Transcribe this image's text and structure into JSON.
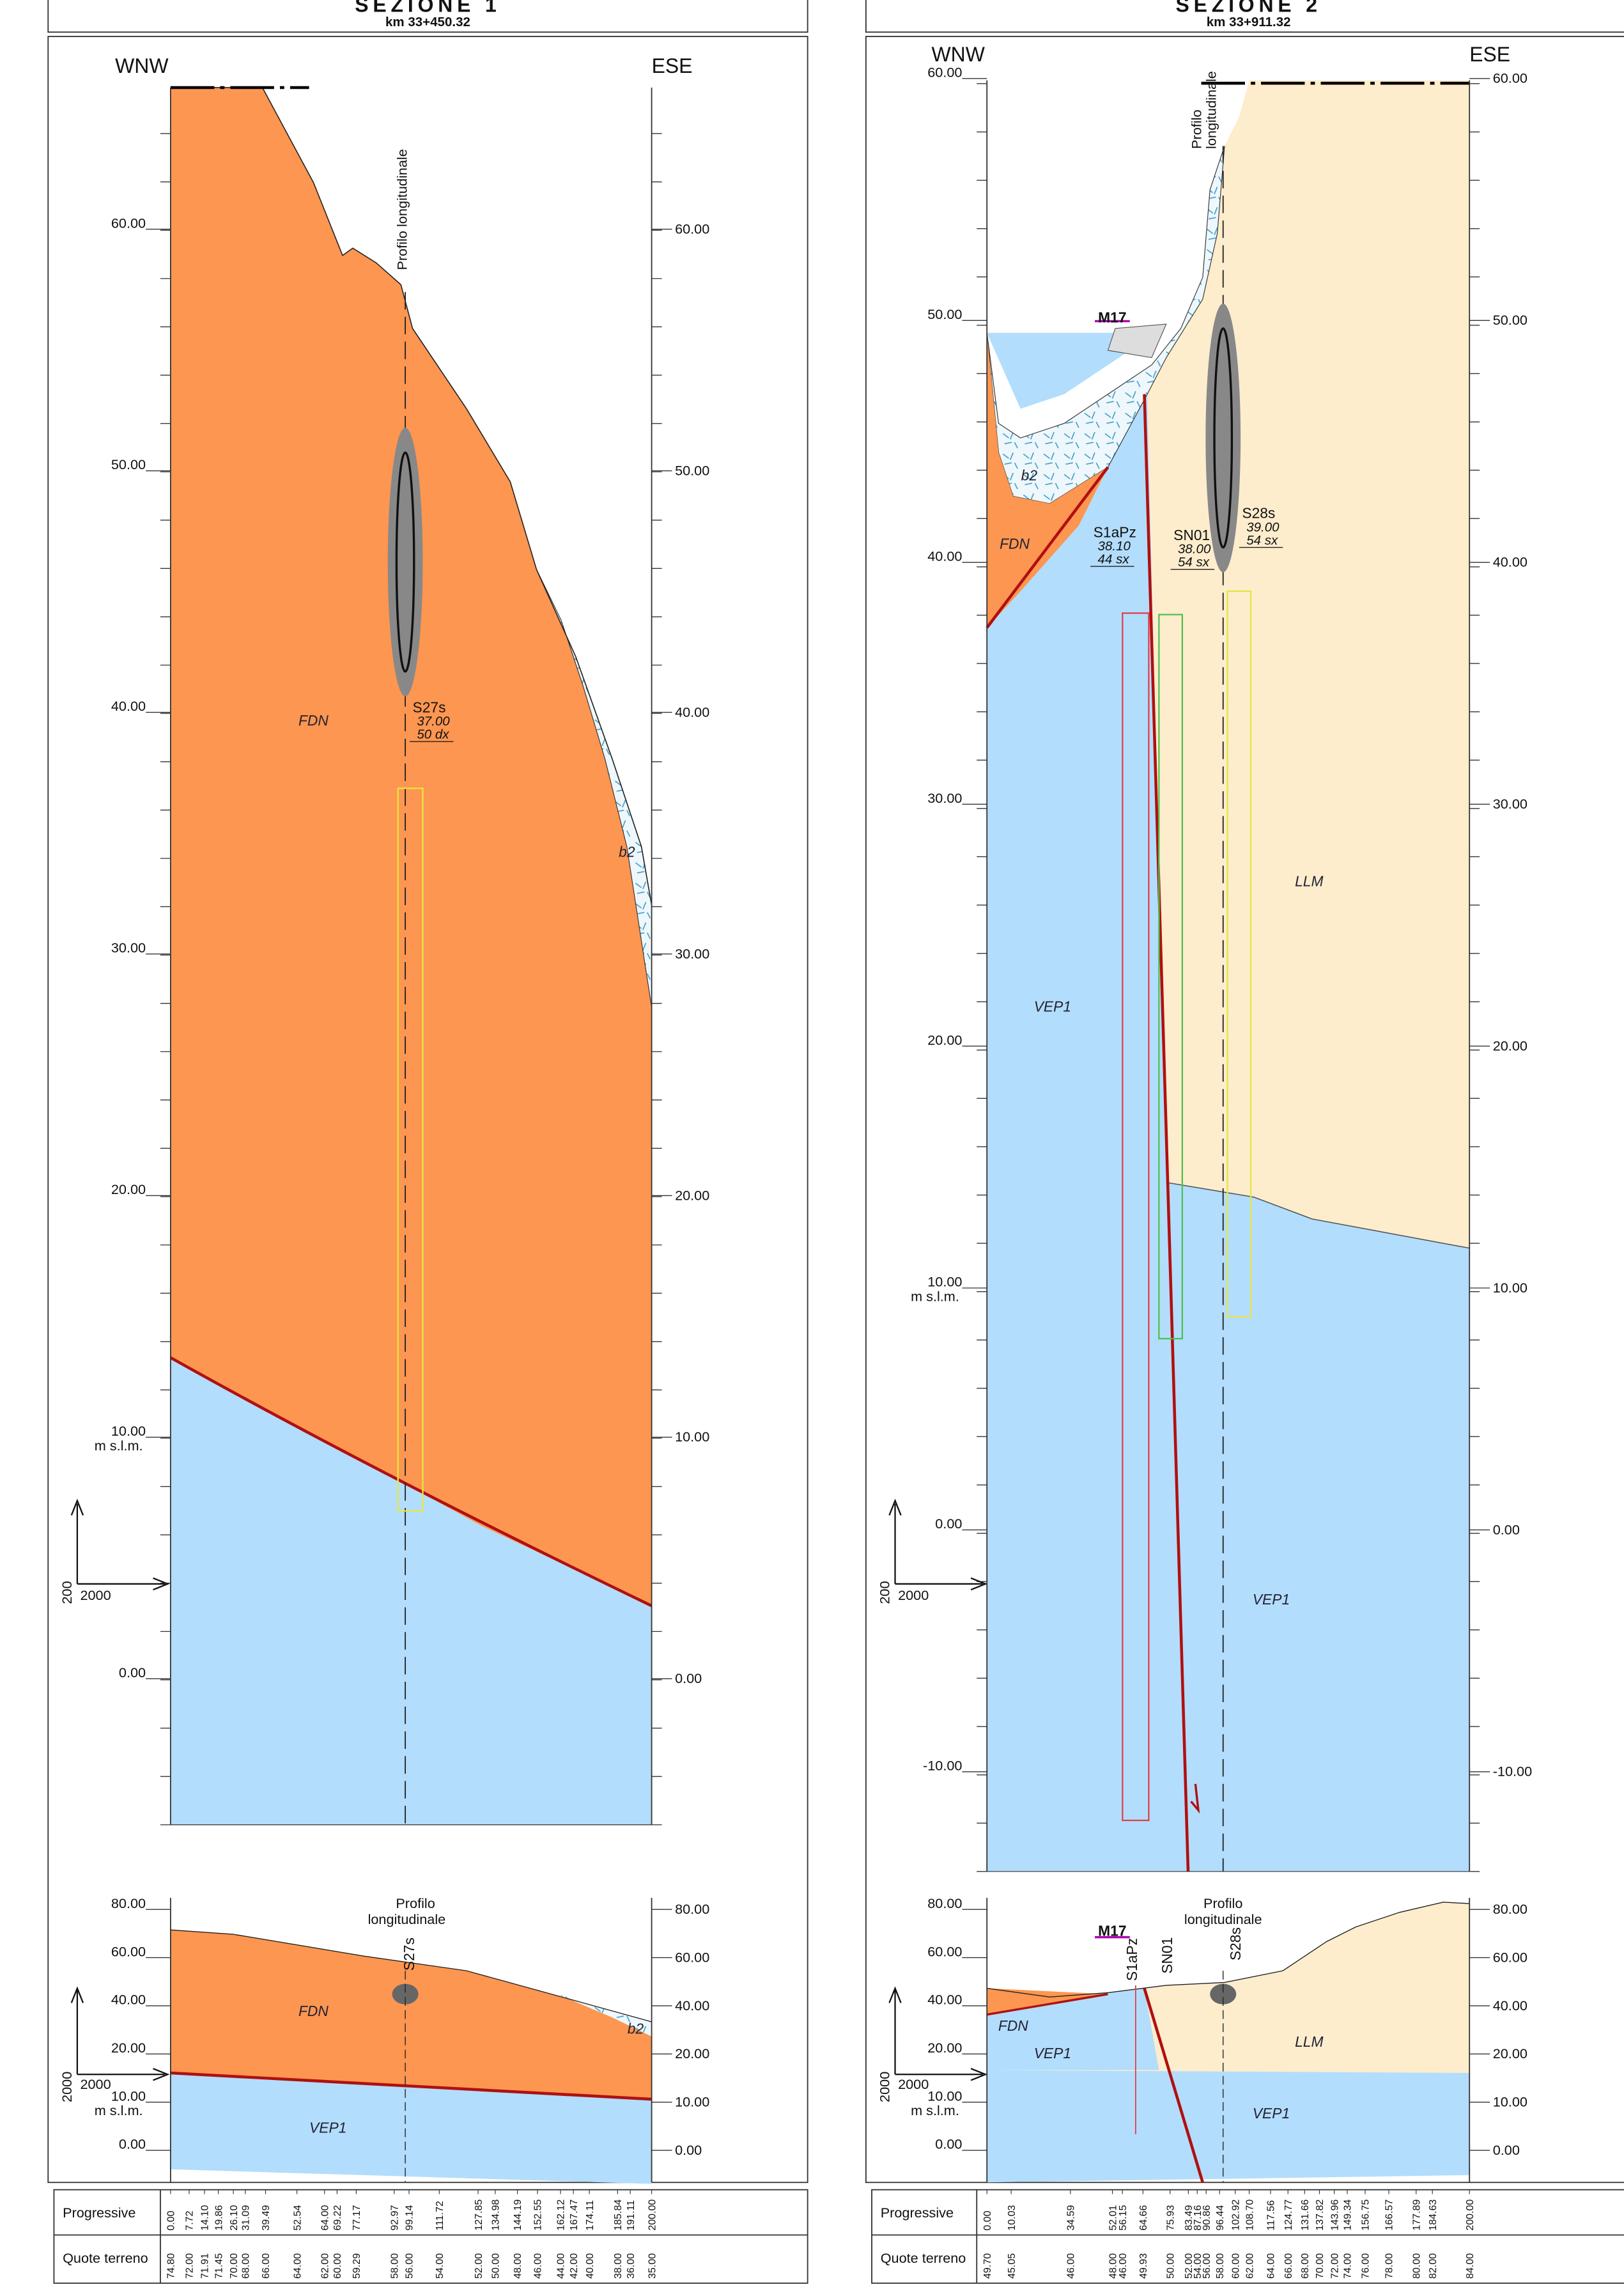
{
  "sections": [
    {
      "title": "SEZIONE 1",
      "km": "km 33+450.32",
      "left_dir": "WNW",
      "right_dir": "ESE",
      "elevations_left": [
        "60.00",
        "50.00",
        "40.00",
        "30.00",
        "20.00",
        "10.00",
        "0.00"
      ],
      "elevations_right": [
        "60.00",
        "50.00",
        "40.00",
        "30.00",
        "20.00",
        "10.00",
        "0.00"
      ],
      "unit": "m s.l.m.",
      "profile": [
        "Profilo longitudinale"
      ],
      "units": [
        "FDN",
        "b2"
      ],
      "marker": [],
      "boreholes": [
        {
          "name": "S27s",
          "elevation": "37.00",
          "offset": "50 dx"
        }
      ],
      "scale": {
        "vertical": "200",
        "horizontal": "2000"
      },
      "mini": {
        "elevations_left": [
          "80.00",
          "60.00",
          "40.00",
          "20.00",
          "10.00",
          "0.00"
        ],
        "elevations_right": [
          "80.00",
          "60.00",
          "40.00",
          "20.00",
          "10.00",
          "0.00"
        ],
        "unit": "m s.l.m.",
        "profile": [
          "Profilo",
          "longitudinale"
        ],
        "boreholes": [
          "S27s"
        ],
        "units": [
          "FDN",
          "b2",
          "VEP1"
        ],
        "marker": [],
        "scale": {
          "vertical": "2000",
          "horizontal": "2000"
        }
      },
      "table": {
        "row_labels": [
          "Progressive",
          "Quote terreno"
        ],
        "progressive": [
          "0.00",
          "7.72",
          "14.10",
          "19.86",
          "26.10",
          "31.09",
          "39.49",
          "52.54",
          "64.00",
          "69.22",
          "77.17",
          "92.97",
          "99.14",
          "111.72",
          "127.85",
          "134.98",
          "144.19",
          "152.55",
          "162.12",
          "167.47",
          "174.11",
          "185.84",
          "191.11",
          "200.00"
        ],
        "ground": [
          "74.80",
          "72.00",
          "71.91",
          "71.45",
          "70.00",
          "68.00",
          "66.00",
          "64.00",
          "62.00",
          "60.00",
          "59.29",
          "58.00",
          "56.00",
          "54.00",
          "52.00",
          "50.00",
          "48.00",
          "46.00",
          "44.00",
          "42.00",
          "40.00",
          "38.00",
          "36.00",
          "35.00"
        ]
      }
    },
    {
      "title": "SEZIONE 2",
      "km": "km 33+911.32",
      "left_dir": "WNW",
      "right_dir": "ESE",
      "elevations_left": [
        "60.00",
        "50.00",
        "40.00",
        "30.00",
        "20.00",
        "10.00",
        "0.00",
        "-10.00"
      ],
      "elevations_right": [
        "60.00",
        "50.00",
        "40.00",
        "30.00",
        "20.00",
        "10.00",
        "0.00",
        "-10.00"
      ],
      "unit": "m s.l.m.",
      "profile": [
        "Profilo",
        "longitudinale"
      ],
      "units": [
        "b2",
        "FDN",
        "VEP1",
        "LLM",
        "VEP1"
      ],
      "marker": [
        "M17"
      ],
      "boreholes": [
        {
          "name": "S1aPz",
          "elevation": "38.10",
          "offset": "44 sx"
        },
        {
          "name": "SN01",
          "elevation": "38.00",
          "offset": "54 sx"
        },
        {
          "name": "S28s",
          "elevation": "39.00",
          "offset": "54 sx"
        }
      ],
      "scale": {
        "vertical": "200",
        "horizontal": "2000"
      },
      "mini": {
        "elevations_left": [
          "80.00",
          "60.00",
          "40.00",
          "20.00",
          "10.00",
          "0.00"
        ],
        "elevations_right": [
          "80.00",
          "60.00",
          "40.00",
          "20.00",
          "10.00",
          "0.00"
        ],
        "unit": "m s.l.m.",
        "profile": [
          "Profilo",
          "longitudinale"
        ],
        "boreholes": [
          "S1aPz",
          "SN01",
          "S28s"
        ],
        "units": [
          "FDN",
          "VEP1",
          "LLM",
          "VEP1"
        ],
        "marker": [
          "M17"
        ],
        "scale": {
          "vertical": "2000",
          "horizontal": "2000"
        }
      },
      "table": {
        "row_labels": [
          "Progressive",
          "Quote terreno"
        ],
        "progressive": [
          "0.00",
          "10.03",
          "34.59",
          "52.01",
          "56.15",
          "64.66",
          "75.93",
          "83.49",
          "87.16",
          "90.86",
          "96.44",
          "102.92",
          "108.70",
          "117.56",
          "124.77",
          "131.66",
          "137.82",
          "143.96",
          "149.34",
          "156.75",
          "166.57",
          "177.89",
          "184.63",
          "200.00"
        ],
        "ground": [
          "49.70",
          "45.05",
          "46.00",
          "48.00",
          "46.00",
          "49.93",
          "50.00",
          "52.00",
          "54.00",
          "56.00",
          "58.00",
          "60.00",
          "62.00",
          "64.00",
          "66.00",
          "68.00",
          "70.00",
          "72.00",
          "74.00",
          "76.00",
          "78.00",
          "80.00",
          "82.00",
          "84.00"
        ]
      }
    }
  ]
}
